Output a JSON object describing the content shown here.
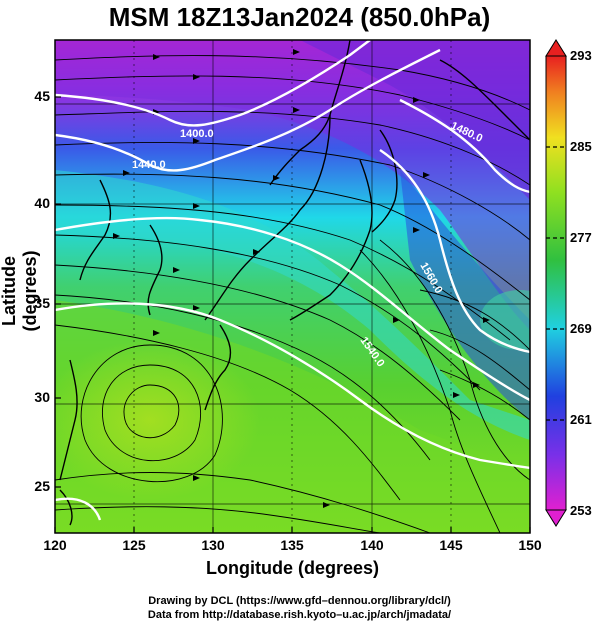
{
  "title": "MSM 18Z13Jan2024 (850.0hPa)",
  "axes": {
    "xlabel": "Longitude (degrees)",
    "ylabel": "Latitude  (degrees)",
    "xticks": [
      "120",
      "125",
      "130",
      "135",
      "140",
      "145",
      "150"
    ],
    "yticks": [
      "25",
      "30",
      "35",
      "40",
      "45"
    ],
    "xrange": [
      120,
      150
    ],
    "yrange": [
      22.5,
      47.7
    ]
  },
  "colorbar": {
    "ticks": [
      "293",
      "285",
      "277",
      "269",
      "261",
      "253"
    ],
    "range": [
      253,
      293
    ],
    "colormap": "rainbow (magenta-blue-cyan-green-yellow-orange-red)"
  },
  "contours": {
    "labels": [
      "1400.0",
      "1440.0",
      "1480.0",
      "1560.0",
      "1540.0"
    ]
  },
  "credits": {
    "line1": "Drawing by DCL (https://www.gfd–dennou.org/library/dcl/)",
    "line2": "Data from http://database.rish.kyoto–u.ac.jp/arch/jmadata/"
  },
  "colors": {
    "magenta": "#e020c0",
    "purple": "#8a2be2",
    "blue": "#2040e0",
    "cyan": "#20d0e0",
    "green": "#40c840",
    "lime": "#90e020",
    "yellow": "#e8e020"
  }
}
